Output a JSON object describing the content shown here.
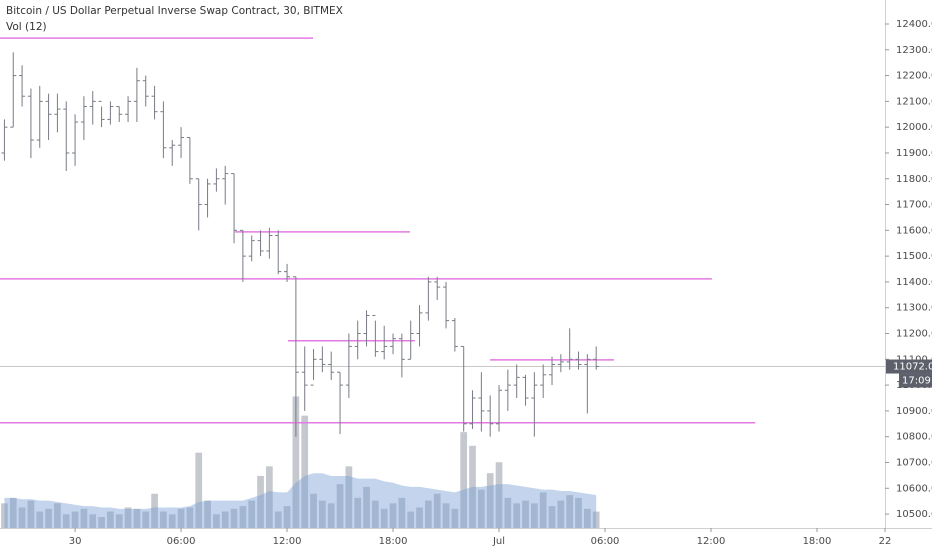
{
  "chart_data": {
    "type": "ohlc",
    "title": "Bitcoin / US Dollar Perpetual Inverse Swap Contract, 30, BITMEX",
    "indicator_label": "Vol (12)",
    "bar_color": "#787b86",
    "volume_color": "#b2b5be",
    "volume_ma_color": "#7b9fd4",
    "level_color": "#e37ae3",
    "x": [
      -4,
      -3.5,
      -3,
      -2.5,
      -2,
      -1.5,
      -1,
      -0.5,
      0,
      0.5,
      1,
      1.5,
      2,
      2.5,
      3,
      3.5,
      4,
      4.5,
      5,
      5.5,
      6,
      6.5,
      7,
      7.5,
      8,
      8.5,
      9,
      9.5,
      10,
      10.5,
      11,
      11.5,
      12,
      12.5,
      13,
      13.5,
      14,
      14.5,
      15,
      15.5,
      16,
      16.5,
      17,
      17.5,
      18,
      18.5,
      19,
      19.5,
      20,
      20.5,
      21,
      21.5,
      22,
      22.5,
      23,
      23.5,
      24,
      24.5,
      25,
      25.5,
      26,
      26.5,
      27,
      27.5,
      28,
      28.5,
      29,
      29.5
    ],
    "open": [
      11900,
      12000,
      12200,
      12120,
      11950,
      12100,
      12050,
      12070,
      11900,
      12020,
      12080,
      12100,
      12030,
      12080,
      12050,
      12100,
      12180,
      12120,
      12060,
      11920,
      11930,
      11960,
      11800,
      11700,
      11780,
      11800,
      11820,
      11600,
      11500,
      11560,
      11520,
      11580,
      11440,
      11420,
      11050,
      11000,
      11100,
      11080,
      11050,
      11000,
      11150,
      11200,
      11270,
      11130,
      11150,
      11180,
      11100,
      11200,
      11280,
      11400,
      11380,
      11250,
      11150,
      10850,
      10950,
      10900,
      10850,
      10980,
      11000,
      11030,
      10950,
      11000,
      11040,
      11080,
      11090,
      11100,
      11080,
      11100
    ],
    "high": [
      12030,
      12290,
      12240,
      12150,
      12160,
      12130,
      12130,
      12100,
      12050,
      12120,
      12140,
      12080,
      12100,
      12080,
      12120,
      12230,
      12200,
      12160,
      12100,
      11950,
      12000,
      11960,
      11800,
      11800,
      11840,
      11850,
      11820,
      11600,
      11580,
      11600,
      11610,
      11600,
      11470,
      11420,
      11150,
      11140,
      11150,
      11130,
      11050,
      11200,
      11250,
      11290,
      11250,
      11230,
      11200,
      11200,
      11250,
      11310,
      11420,
      11420,
      11400,
      11260,
      11150,
      10980,
      11050,
      10960,
      11000,
      11060,
      11080,
      11040,
      11050,
      11080,
      11110,
      11120,
      11220,
      11130,
      11120,
      11150
    ],
    "low": [
      11870,
      12000,
      12080,
      11880,
      11920,
      11950,
      11980,
      11830,
      11850,
      11950,
      12010,
      12000,
      12010,
      12020,
      12020,
      12020,
      12080,
      12030,
      11880,
      11850,
      11880,
      11780,
      11600,
      11650,
      11750,
      11700,
      11550,
      11400,
      11480,
      11500,
      11490,
      11430,
      11400,
      10800,
      10900,
      11020,
      11050,
      11020,
      10810,
      10950,
      11100,
      11150,
      11110,
      11100,
      11120,
      11030,
      11100,
      11150,
      11250,
      11330,
      11220,
      11130,
      10820,
      10830,
      10820,
      10800,
      10820,
      10900,
      10950,
      10920,
      10800,
      10950,
      11000,
      11050,
      11060,
      11060,
      10890,
      11060
    ],
    "close": [
      12000,
      12200,
      12120,
      11950,
      12100,
      12050,
      12070,
      11900,
      12020,
      12080,
      12100,
      12030,
      12080,
      12050,
      12100,
      12180,
      12120,
      12060,
      11920,
      11930,
      11960,
      11800,
      11700,
      11780,
      11800,
      11820,
      11600,
      11500,
      11560,
      11520,
      11580,
      11440,
      11420,
      11050,
      11000,
      11100,
      11080,
      11050,
      11000,
      11150,
      11200,
      11270,
      11130,
      11150,
      11180,
      11100,
      11200,
      11280,
      11400,
      11380,
      11250,
      11150,
      10850,
      10950,
      10900,
      10850,
      10980,
      11000,
      11030,
      10950,
      11000,
      11040,
      11080,
      11090,
      11100,
      11080,
      11100,
      11072
    ],
    "volume": [
      18,
      22,
      15,
      20,
      12,
      14,
      18,
      10,
      12,
      14,
      10,
      8,
      12,
      10,
      15,
      14,
      12,
      25,
      12,
      10,
      14,
      15,
      55,
      20,
      10,
      12,
      14,
      16,
      20,
      38,
      45,
      12,
      16,
      96,
      82,
      25,
      20,
      18,
      32,
      45,
      22,
      30,
      20,
      14,
      18,
      22,
      12,
      15,
      20,
      25,
      18,
      14,
      70,
      60,
      28,
      40,
      48,
      22,
      18,
      20,
      18,
      26,
      16,
      20,
      24,
      22,
      14,
      12
    ],
    "volume_ma": [
      22,
      22,
      21,
      21,
      20,
      20,
      19,
      18,
      17,
      16,
      16,
      15,
      15,
      14,
      14,
      14,
      14,
      15,
      15,
      15,
      15,
      16,
      19,
      20,
      20,
      20,
      20,
      20,
      22,
      24,
      27,
      26,
      26,
      33,
      38,
      40,
      40,
      38,
      38,
      38,
      36,
      36,
      36,
      34,
      33,
      31,
      30,
      30,
      29,
      28,
      27,
      26,
      28,
      30,
      30,
      31,
      32,
      32,
      31,
      30,
      29,
      28,
      28,
      27,
      27,
      26,
      25,
      24
    ],
    "volume_ylim": [
      0,
      100
    ],
    "levels": [
      {
        "price": 12345,
        "from": -4.25,
        "to": 13.47
      },
      {
        "price": 11594,
        "from": 9.06,
        "to": 18.96
      },
      {
        "price": 11412,
        "from": -4.25,
        "to": 36.05
      },
      {
        "price": 11172,
        "from": 12.05,
        "to": 19.24
      },
      {
        "price": 11098,
        "from": 23.49,
        "to": 30.51
      },
      {
        "price": 10854,
        "from": -4.25,
        "to": 38.5
      }
    ],
    "last_price": {
      "value": 11072,
      "label": "11072.0"
    },
    "countdown": "17:09",
    "xlim": [
      -4.25,
      45.85
    ],
    "xticks": [
      {
        "value": 0,
        "label": "30"
      },
      {
        "value": 6,
        "label": "06:00"
      },
      {
        "value": 12,
        "label": "12:00"
      },
      {
        "value": 18,
        "label": "18:00"
      },
      {
        "value": 24,
        "label": "Jul"
      },
      {
        "value": 30,
        "label": "06:00"
      },
      {
        "value": 36,
        "label": "12:00"
      },
      {
        "value": 42,
        "label": "18:00"
      },
      {
        "value": 45.85,
        "label": "22"
      }
    ],
    "ylim": [
      10446,
      12493
    ],
    "yticks": [
      {
        "value": 10500,
        "label": "10500.0"
      },
      {
        "value": 10600,
        "label": "10600.0"
      },
      {
        "value": 10700,
        "label": "10700.0"
      },
      {
        "value": 10800,
        "label": "10800.0"
      },
      {
        "value": 10900,
        "label": "10900.0"
      },
      {
        "value": 11000,
        "label": "11000.0"
      },
      {
        "value": 11100,
        "label": "11100.0"
      },
      {
        "value": 11200,
        "label": "11200.0"
      },
      {
        "value": 11300,
        "label": "11300.0"
      },
      {
        "value": 11400,
        "label": "11400.0"
      },
      {
        "value": 11500,
        "label": "11500.0"
      },
      {
        "value": 11600,
        "label": "11600.0"
      },
      {
        "value": 11700,
        "label": "11700.0"
      },
      {
        "value": 11800,
        "label": "11800.0"
      },
      {
        "value": 11900,
        "label": "11900.0"
      },
      {
        "value": 12000,
        "label": "12000.0"
      },
      {
        "value": 12100,
        "label": "12100.0"
      },
      {
        "value": 12200,
        "label": "12200.0"
      },
      {
        "value": 12300,
        "label": "12300.0"
      },
      {
        "value": 12400,
        "label": "12400.0"
      }
    ]
  }
}
